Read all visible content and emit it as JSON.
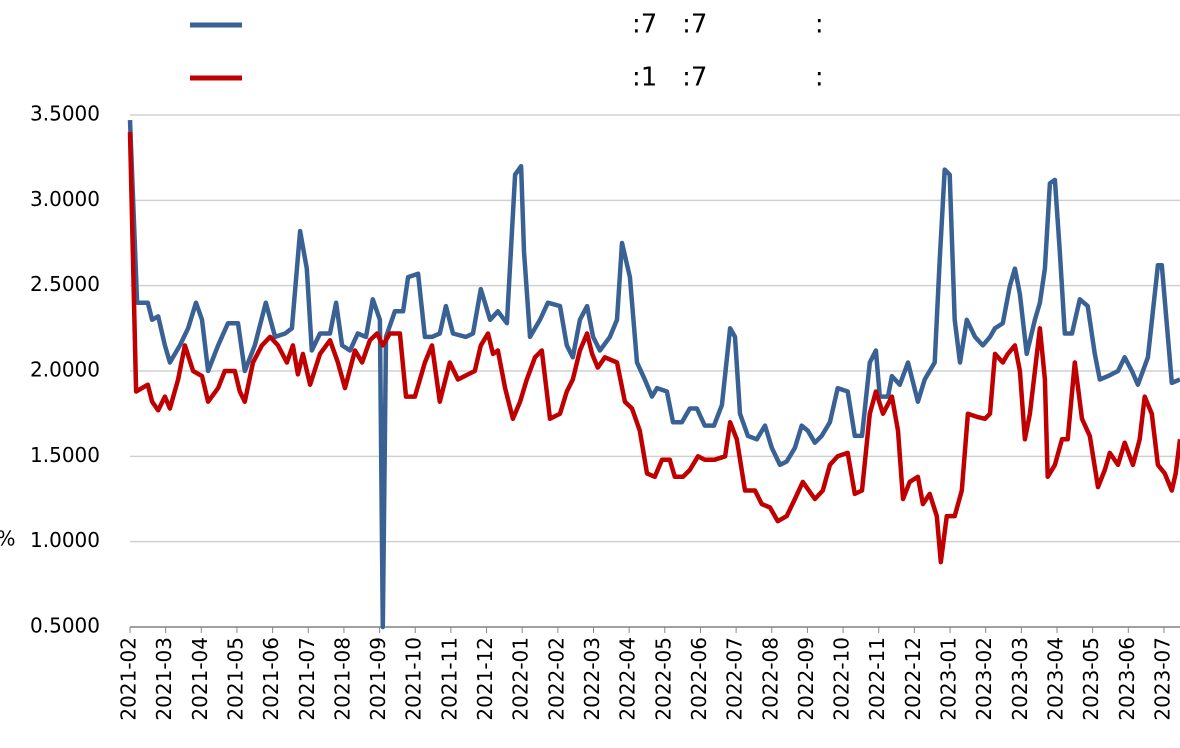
{
  "chart_data": {
    "type": "line",
    "ylabel": "%",
    "xlim": [
      0,
      29.45
    ],
    "xticks": [
      {
        "value": 0,
        "label": "2021-02"
      },
      {
        "value": 1,
        "label": "2021-03"
      },
      {
        "value": 2,
        "label": "2021-04"
      },
      {
        "value": 3,
        "label": "2021-05"
      },
      {
        "value": 4,
        "label": "2021-06"
      },
      {
        "value": 5,
        "label": "2021-07"
      },
      {
        "value": 6,
        "label": "2021-08"
      },
      {
        "value": 7,
        "label": "2021-09"
      },
      {
        "value": 8,
        "label": "2021-10"
      },
      {
        "value": 9,
        "label": "2021-11"
      },
      {
        "value": 10,
        "label": "2021-12"
      },
      {
        "value": 11,
        "label": "2022-01"
      },
      {
        "value": 12,
        "label": "2022-02"
      },
      {
        "value": 13,
        "label": "2022-03"
      },
      {
        "value": 14,
        "label": "2022-04"
      },
      {
        "value": 15,
        "label": "2022-05"
      },
      {
        "value": 16,
        "label": "2022-06"
      },
      {
        "value": 17,
        "label": "2022-07"
      },
      {
        "value": 18,
        "label": "2022-08"
      },
      {
        "value": 19,
        "label": "2022-09"
      },
      {
        "value": 20,
        "label": "2022-10"
      },
      {
        "value": 21,
        "label": "2022-11"
      },
      {
        "value": 22,
        "label": "2022-12"
      },
      {
        "value": 23,
        "label": "2023-01"
      },
      {
        "value": 24,
        "label": "2023-02"
      },
      {
        "value": 25,
        "label": "2023-03"
      },
      {
        "value": 26,
        "label": "2023-04"
      },
      {
        "value": 27,
        "label": "2023-05"
      },
      {
        "value": 28,
        "label": "2023-06"
      },
      {
        "value": 29,
        "label": "2023-07"
      }
    ],
    "ylim": [
      0.5,
      3.5
    ],
    "yticks": [
      {
        "value": 0.5,
        "label": "0.5000"
      },
      {
        "value": 1,
        "label": "1.0000"
      },
      {
        "value": 1.5,
        "label": "1.5000"
      },
      {
        "value": 2,
        "label": "2.0000"
      },
      {
        "value": 2.5,
        "label": "2.5000"
      },
      {
        "value": 3,
        "label": "3.0000"
      },
      {
        "value": 3.5,
        "label": "3.5000"
      }
    ],
    "grid": true,
    "series": [
      {
        "name": ":7   :7             :",
        "color": "#3a6194",
        "x": [
          0,
          0.2,
          0.5,
          0.62,
          0.79,
          0.98,
          1.12,
          1.4,
          1.63,
          1.85,
          2.02,
          2.19,
          2.47,
          2.75,
          3.03,
          3.22,
          3.5,
          3.81,
          4.07,
          4.35,
          4.54,
          4.77,
          4.96,
          5.1,
          5.33,
          5.61,
          5.78,
          5.95,
          6.17,
          6.39,
          6.62,
          6.81,
          7.01,
          7.09,
          7.18,
          7.43,
          7.66,
          7.8,
          8.08,
          8.27,
          8.47,
          8.69,
          8.86,
          9.06,
          9.42,
          9.62,
          9.84,
          10.1,
          10.32,
          10.57,
          10.8,
          10.97,
          11.05,
          11.22,
          11.5,
          11.72,
          12.06,
          12.25,
          12.42,
          12.62,
          12.82,
          12.99,
          13.18,
          13.46,
          13.66,
          13.8,
          14.02,
          14.22,
          14.44,
          14.64,
          14.78,
          15.06,
          15.23,
          15.48,
          15.7,
          15.9,
          16.12,
          16.38,
          16.6,
          16.83,
          16.97,
          17.11,
          17.33,
          17.58,
          17.81,
          18.0,
          18.23,
          18.42,
          18.65,
          18.84,
          19.01,
          19.21,
          19.4,
          19.63,
          19.85,
          20.13,
          20.33,
          20.53,
          20.75,
          20.92,
          21.03,
          21.26,
          21.37,
          21.59,
          21.82,
          22.1,
          22.29,
          22.57,
          22.71,
          22.85,
          22.99,
          23.13,
          23.28,
          23.47,
          23.7,
          23.92,
          24.12,
          24.26,
          24.48,
          24.68,
          24.82,
          24.96,
          25.15,
          25.38,
          25.52,
          25.66,
          25.8,
          25.94,
          26.08,
          26.22,
          26.42,
          26.64,
          26.86,
          27.06,
          27.2,
          27.43,
          27.71,
          27.9,
          28.1,
          28.27,
          28.55,
          28.83,
          28.94,
          29.11,
          29.22,
          29.45
        ],
        "values": [
          3.47,
          2.4,
          2.4,
          2.3,
          2.32,
          2.15,
          2.05,
          2.15,
          2.25,
          2.4,
          2.3,
          2.0,
          2.15,
          2.28,
          2.28,
          2.0,
          2.15,
          2.4,
          2.2,
          2.22,
          2.25,
          2.82,
          2.6,
          2.12,
          2.22,
          2.22,
          2.4,
          2.15,
          2.12,
          2.22,
          2.2,
          2.42,
          2.3,
          0.5,
          2.2,
          2.35,
          2.35,
          2.55,
          2.57,
          2.2,
          2.2,
          2.22,
          2.38,
          2.22,
          2.2,
          2.22,
          2.48,
          2.3,
          2.35,
          2.28,
          3.15,
          3.2,
          2.7,
          2.2,
          2.3,
          2.4,
          2.38,
          2.15,
          2.08,
          2.3,
          2.38,
          2.2,
          2.12,
          2.2,
          2.3,
          2.75,
          2.55,
          2.05,
          1.95,
          1.85,
          1.9,
          1.88,
          1.7,
          1.7,
          1.78,
          1.78,
          1.68,
          1.68,
          1.8,
          2.25,
          2.2,
          1.75,
          1.62,
          1.6,
          1.68,
          1.55,
          1.45,
          1.47,
          1.55,
          1.68,
          1.65,
          1.58,
          1.62,
          1.7,
          1.9,
          1.88,
          1.62,
          1.62,
          2.05,
          2.12,
          1.85,
          1.85,
          1.97,
          1.92,
          2.05,
          1.82,
          1.95,
          2.05,
          2.65,
          3.18,
          3.15,
          2.3,
          2.05,
          2.3,
          2.2,
          2.15,
          2.2,
          2.25,
          2.28,
          2.5,
          2.6,
          2.45,
          2.1,
          2.3,
          2.4,
          2.6,
          3.1,
          3.12,
          2.7,
          2.22,
          2.22,
          2.42,
          2.38,
          2.1,
          1.95,
          1.97,
          2.0,
          2.08,
          2.0,
          1.92,
          2.08,
          2.62,
          2.62,
          2.2,
          1.93,
          1.95
        ]
      },
      {
        "name": ":1   :7             :",
        "color": "#c00000",
        "x": [
          0,
          0.17,
          0.5,
          0.62,
          0.79,
          0.98,
          1.12,
          1.35,
          1.54,
          1.77,
          2.02,
          2.19,
          2.47,
          2.66,
          2.94,
          3.08,
          3.22,
          3.45,
          3.7,
          3.93,
          4.15,
          4.4,
          4.57,
          4.71,
          4.85,
          5.05,
          5.33,
          5.61,
          5.83,
          6.03,
          6.31,
          6.51,
          6.73,
          6.93,
          7.09,
          7.29,
          7.57,
          7.74,
          7.99,
          8.27,
          8.47,
          8.69,
          8.97,
          9.2,
          9.48,
          9.67,
          9.84,
          10.04,
          10.18,
          10.32,
          10.52,
          10.74,
          10.94,
          11.13,
          11.36,
          11.55,
          11.78,
          12.06,
          12.25,
          12.42,
          12.62,
          12.82,
          12.96,
          13.12,
          13.32,
          13.66,
          13.88,
          14.08,
          14.3,
          14.5,
          14.72,
          14.92,
          15.14,
          15.28,
          15.51,
          15.7,
          15.93,
          16.12,
          16.4,
          16.69,
          16.83,
          17.02,
          17.25,
          17.53,
          17.72,
          17.95,
          18.17,
          18.42,
          18.65,
          18.87,
          19.21,
          19.43,
          19.63,
          19.85,
          20.13,
          20.33,
          20.53,
          20.75,
          20.92,
          21.12,
          21.37,
          21.54,
          21.68,
          21.87,
          22.1,
          22.24,
          22.43,
          22.63,
          22.74,
          22.91,
          23.13,
          23.33,
          23.5,
          23.78,
          23.98,
          24.12,
          24.26,
          24.48,
          24.62,
          24.82,
          24.96,
          25.1,
          25.24,
          25.52,
          25.66,
          25.74,
          25.94,
          26.14,
          26.3,
          26.5,
          26.7,
          26.92,
          27.15,
          27.34,
          27.48,
          27.71,
          27.9,
          28.13,
          28.32,
          28.46,
          28.66,
          28.83,
          29.02,
          29.22,
          29.33,
          29.45
        ],
        "values": [
          3.4,
          1.88,
          1.92,
          1.82,
          1.77,
          1.85,
          1.78,
          1.95,
          2.15,
          2.0,
          1.97,
          1.82,
          1.9,
          2.0,
          2.0,
          1.88,
          1.82,
          2.05,
          2.15,
          2.2,
          2.15,
          2.05,
          2.15,
          1.98,
          2.1,
          1.92,
          2.1,
          2.18,
          2.05,
          1.9,
          2.12,
          2.05,
          2.18,
          2.22,
          2.15,
          2.22,
          2.22,
          1.85,
          1.85,
          2.05,
          2.15,
          1.82,
          2.05,
          1.95,
          1.98,
          2.0,
          2.15,
          2.22,
          2.1,
          2.12,
          1.9,
          1.72,
          1.82,
          1.95,
          2.08,
          2.12,
          1.72,
          1.75,
          1.88,
          1.95,
          2.12,
          2.22,
          2.1,
          2.02,
          2.08,
          2.05,
          1.82,
          1.78,
          1.65,
          1.4,
          1.38,
          1.48,
          1.48,
          1.38,
          1.38,
          1.42,
          1.5,
          1.48,
          1.48,
          1.5,
          1.7,
          1.6,
          1.3,
          1.3,
          1.22,
          1.2,
          1.12,
          1.15,
          1.25,
          1.35,
          1.25,
          1.3,
          1.45,
          1.5,
          1.52,
          1.28,
          1.3,
          1.75,
          1.88,
          1.75,
          1.85,
          1.65,
          1.25,
          1.35,
          1.38,
          1.22,
          1.28,
          1.15,
          0.88,
          1.15,
          1.15,
          1.3,
          1.75,
          1.73,
          1.72,
          1.75,
          2.1,
          2.05,
          2.1,
          2.15,
          2.0,
          1.6,
          1.75,
          2.25,
          1.95,
          1.38,
          1.45,
          1.6,
          1.6,
          2.05,
          1.72,
          1.62,
          1.32,
          1.42,
          1.52,
          1.45,
          1.58,
          1.45,
          1.6,
          1.85,
          1.75,
          1.45,
          1.4,
          1.3,
          1.4,
          1.6
        ]
      }
    ]
  }
}
